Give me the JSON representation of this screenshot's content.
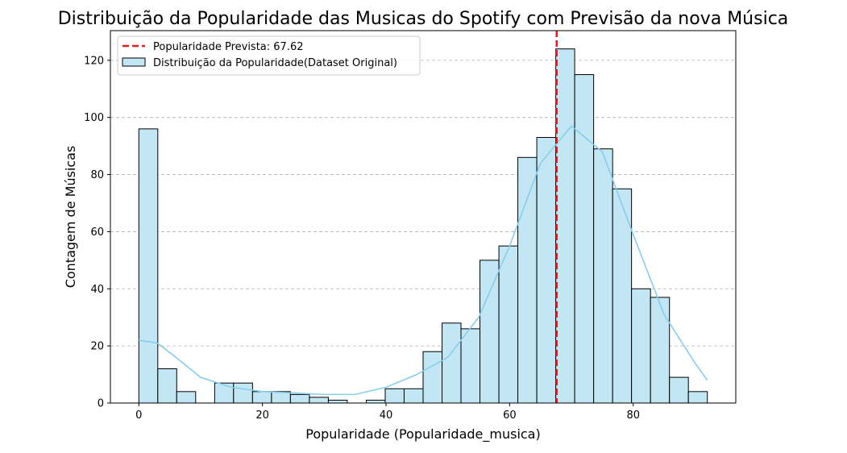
{
  "chart_data": {
    "type": "histogram",
    "title": "Distribuição da Popularidade das Musicas do Spotify com Previsão da nova Música",
    "xlabel": "Popularidade (Popularidade_musica)",
    "ylabel": "Contagem de Músicas",
    "bins": [
      0,
      3.07,
      6.13,
      9.2,
      12.27,
      15.33,
      18.4,
      21.47,
      24.53,
      27.6,
      30.67,
      33.73,
      36.8,
      39.87,
      42.93,
      46,
      49.07,
      52.13,
      55.2,
      58.27,
      61.33,
      64.4,
      67.47,
      70.53,
      73.6,
      76.67,
      79.73,
      82.8,
      85.87,
      88.93,
      92
    ],
    "series": [
      {
        "name": "Distribuição da Popularidade(Dataset Original)",
        "color": "#c2e6f4",
        "values": [
          96,
          12,
          4,
          0,
          7,
          7,
          4,
          4,
          3,
          2,
          1,
          0,
          1,
          5,
          5,
          18,
          28,
          26,
          50,
          55,
          86,
          93,
          124,
          115,
          89,
          75,
          40,
          37,
          9,
          4
        ]
      }
    ],
    "kde": {
      "color": "#87ceeb",
      "x": [
        0,
        3,
        6,
        10,
        15,
        20,
        25,
        30,
        35,
        40,
        45,
        50,
        55,
        60,
        65,
        70,
        75,
        80,
        85,
        90,
        92
      ],
      "values": [
        22,
        21,
        16,
        9,
        5.5,
        4,
        3.5,
        3,
        3,
        5.5,
        10,
        16,
        30,
        55,
        84,
        97,
        88,
        59,
        31,
        14,
        8
      ]
    },
    "vline": {
      "name": "Popularidade Prevista: 67.62",
      "value": 67.62,
      "color": "#e41a1c"
    },
    "xlim": [
      -4.6,
      96.6
    ],
    "ylim": [
      0,
      130.4
    ],
    "xticks": [
      0,
      20,
      40,
      60,
      80
    ],
    "yticks": [
      0,
      20,
      40,
      60,
      80,
      100,
      120
    ],
    "grid": "y"
  }
}
